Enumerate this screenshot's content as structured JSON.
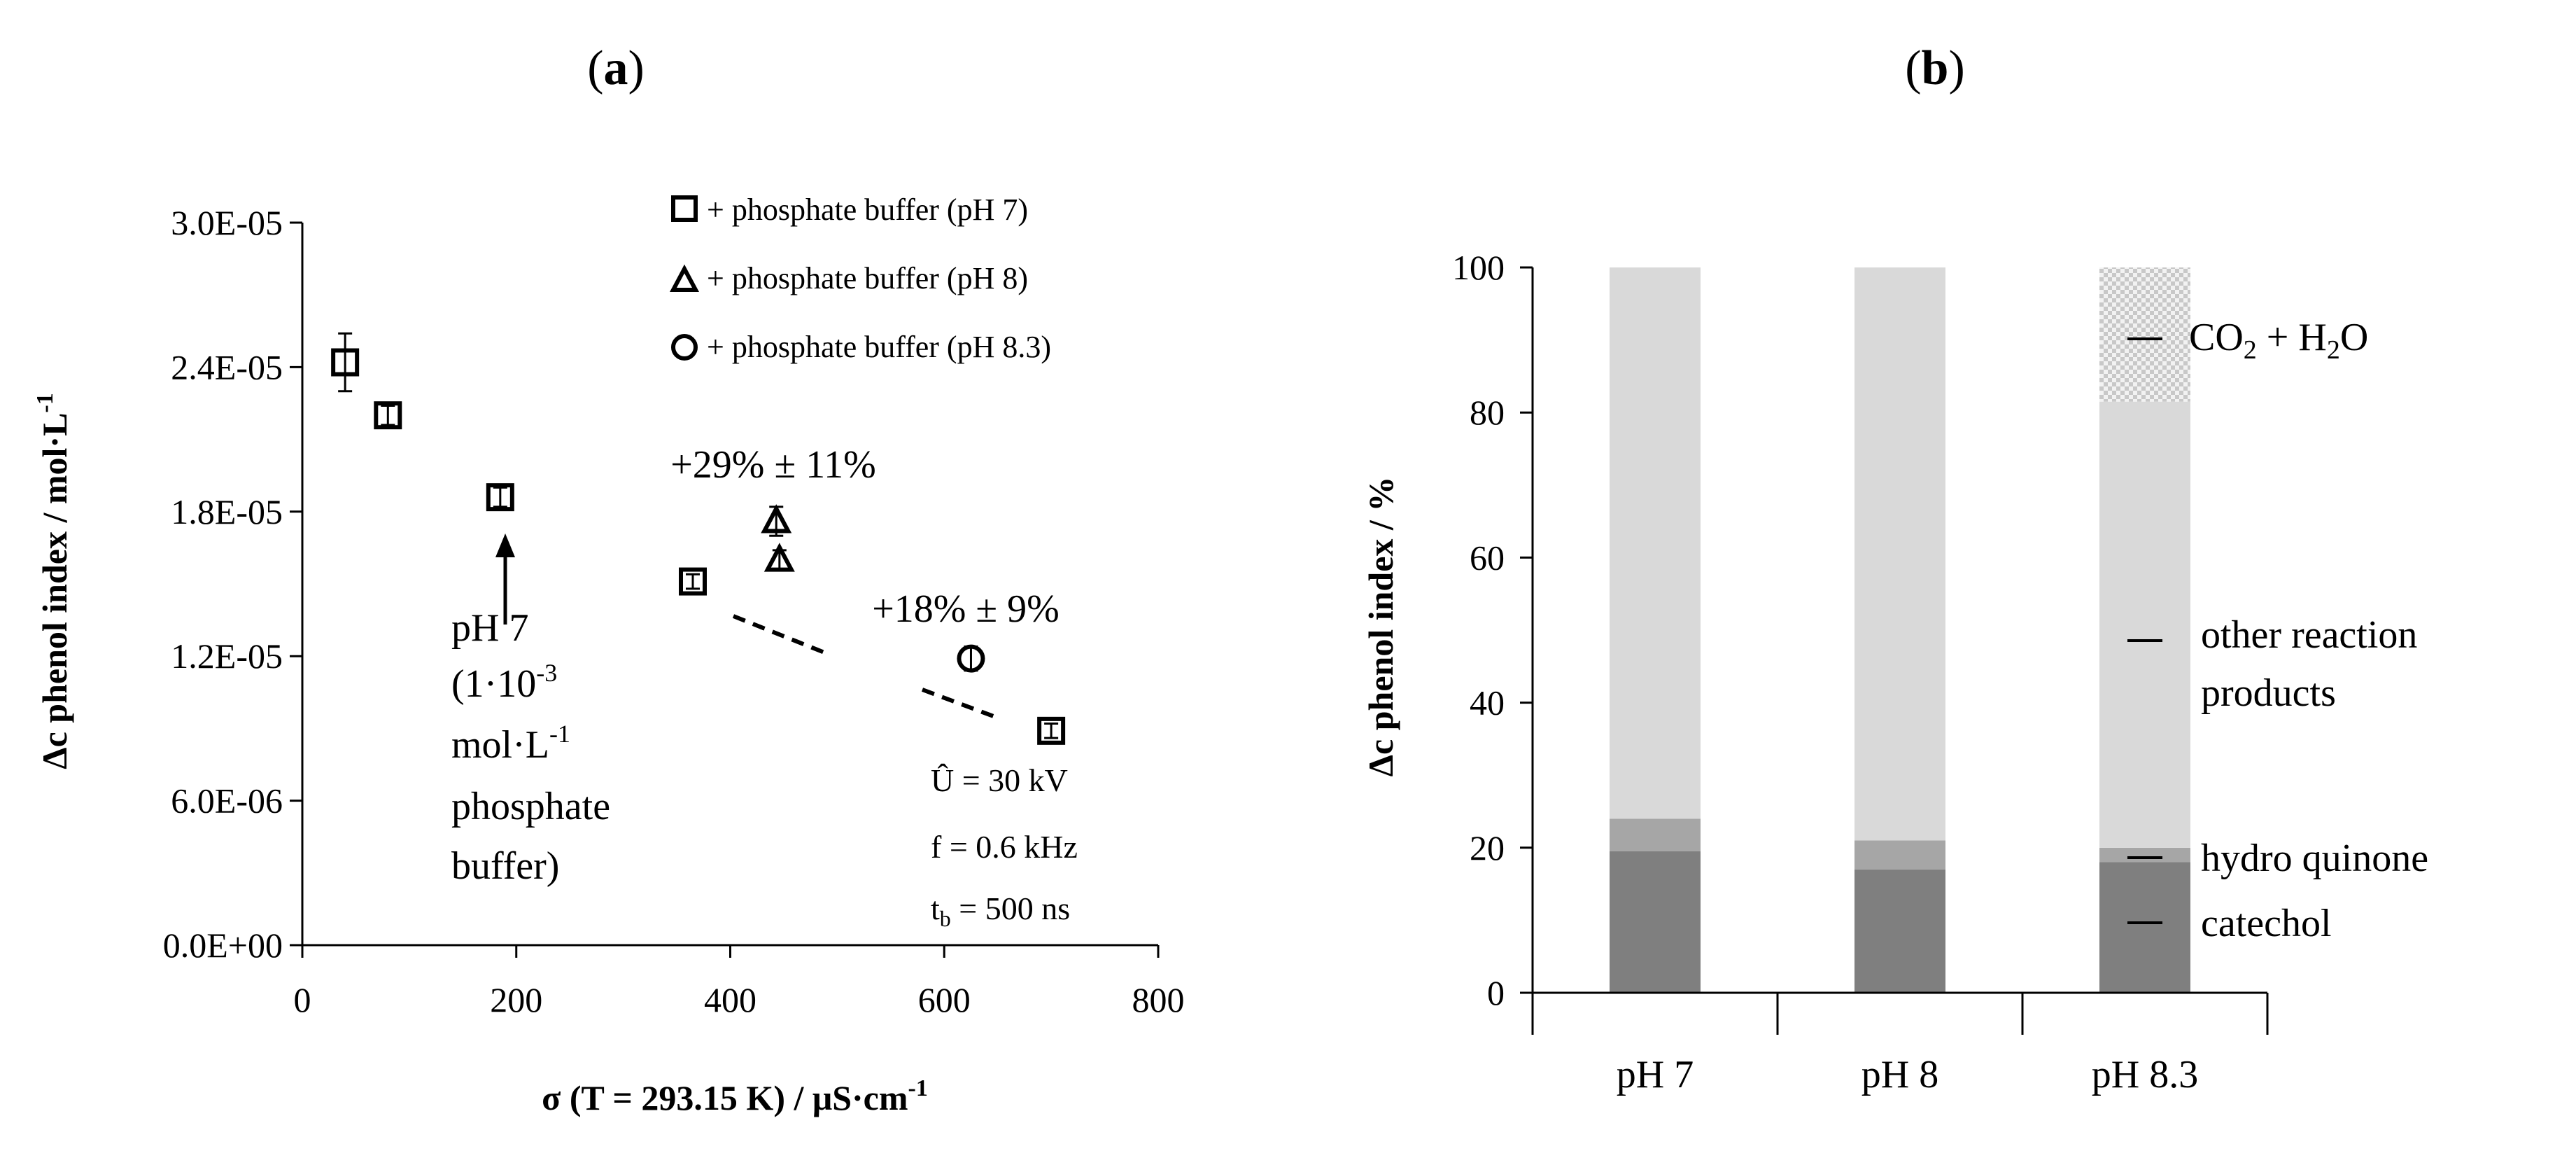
{
  "panel_labels": {
    "a": {
      "pre": "(",
      "letter": "a",
      "post": ")"
    },
    "b": {
      "pre": "(",
      "letter": "b",
      "post": ")"
    }
  },
  "colors": {
    "catechol": "#7f7f7f",
    "hydro_quinone": "#a6a6a6",
    "other": "#d9d9d9",
    "co2": "#c8c8c8",
    "axis": "#000000"
  },
  "chart_data": [
    {
      "type": "scatter",
      "ylabel": {
        "delta": "Δ",
        "rest": "c phenol index / mol·L",
        "sup": "-1"
      },
      "xlabel": {
        "pre": "σ (T = 293.15 K) / μS·cm",
        "sup": "-1"
      },
      "xlim": [
        0,
        800
      ],
      "ylim": [
        0,
        3e-05
      ],
      "xticks": [
        0,
        200,
        400,
        600,
        800
      ],
      "xtick_labels": [
        "0",
        "200",
        "400",
        "600",
        "800"
      ],
      "yticks": [
        0,
        6e-06,
        1.2e-05,
        1.8e-05,
        2.4e-05,
        3e-05
      ],
      "ytick_labels": [
        "0.0E+00",
        "6.0E-06",
        "1.2E-05",
        "1.8E-05",
        "2.4E-05",
        "3.0E-05"
      ],
      "grid": false,
      "legend_position": "top-right",
      "series": [
        {
          "name": "+ phosphate buffer (pH 7)",
          "marker": "square",
          "points": [
            {
              "x": 40,
              "y": 2.42e-05,
              "err": 1.2e-06
            },
            {
              "x": 80,
              "y": 2.2e-05,
              "err": 4e-07
            },
            {
              "x": 185,
              "y": 1.86e-05,
              "err": 4e-07
            },
            {
              "x": 365,
              "y": 1.51e-05,
              "err": 3e-07
            },
            {
              "x": 700,
              "y": 8.9e-06,
              "err": 3e-07
            }
          ]
        },
        {
          "name": "+ phosphate buffer (pH 8)",
          "marker": "triangle",
          "points": [
            {
              "x": 443,
              "y": 1.76e-05,
              "err": 6e-07
            },
            {
              "x": 446,
              "y": 1.6e-05,
              "err": 4e-07
            }
          ]
        },
        {
          "name": "+ phosphate buffer (pH 8.3)",
          "marker": "circle",
          "points": [
            {
              "x": 625,
              "y": 1.19e-05,
              "err": 5e-07
            }
          ]
        }
      ],
      "annotations": {
        "pct29": "+29% ± 11%",
        "pct18": "+18% ± 9%",
        "ph7_block": {
          "line1": "pH 7",
          "line2_pre": "(1·10",
          "line2_sup": "-3",
          "line3_pre": "mol·L",
          "line3_sup": "-1",
          "line4": "phosphate",
          "line5": "buffer)"
        },
        "params": {
          "u": "Û = 30 kV",
          "f": "f = 0.6 kHz",
          "tb_pre": "t",
          "tb_sub": "b",
          "tb_post": " = 500 ns"
        }
      }
    },
    {
      "type": "bar",
      "stacked": true,
      "ylabel": {
        "delta": "Δ",
        "rest": "c phenol index  / %"
      },
      "ylim": [
        0,
        100
      ],
      "yticks": [
        0,
        20,
        40,
        60,
        80,
        100
      ],
      "ytick_labels": [
        "0",
        "20",
        "40",
        "60",
        "80",
        "100"
      ],
      "categories": [
        "pH 7",
        "pH 8",
        "pH 8.3"
      ],
      "series": [
        {
          "name": "catechol",
          "values": [
            19.5,
            17,
            18
          ]
        },
        {
          "name": "hydro quinone",
          "values": [
            4.5,
            4,
            2
          ]
        },
        {
          "name": "other reaction products",
          "values": [
            76,
            79,
            61.5
          ]
        },
        {
          "name": "CO2 + H2O",
          "values": [
            0,
            0,
            18.5
          ]
        }
      ],
      "labels": {
        "co2": {
          "a": "CO",
          "sub1": "2",
          "b": " + H",
          "sub2": "2",
          "c": "O"
        },
        "other_line1": "other reaction",
        "other_line2": "products",
        "hydro": "hydro quinone",
        "catechol": "catechol"
      }
    }
  ]
}
